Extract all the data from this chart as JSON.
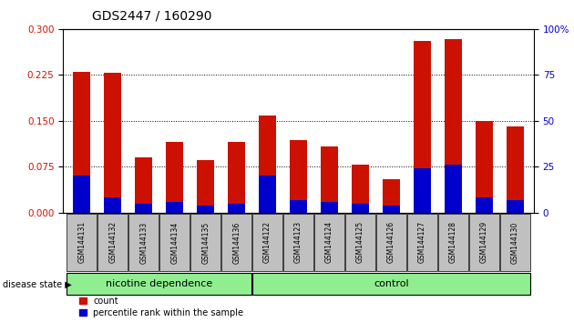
{
  "title": "GDS2447 / 160290",
  "samples": [
    "GSM144131",
    "GSM144132",
    "GSM144133",
    "GSM144134",
    "GSM144135",
    "GSM144136",
    "GSM144122",
    "GSM144123",
    "GSM144124",
    "GSM144125",
    "GSM144126",
    "GSM144127",
    "GSM144128",
    "GSM144129",
    "GSM144130"
  ],
  "count_values": [
    0.23,
    0.228,
    0.09,
    0.115,
    0.085,
    0.115,
    0.158,
    0.118,
    0.108,
    0.078,
    0.055,
    0.28,
    0.283,
    0.15,
    0.14
  ],
  "percentile_pct": [
    20,
    8,
    5,
    6,
    4,
    5,
    20,
    7,
    6,
    5,
    4,
    24,
    26,
    8,
    7
  ],
  "bar_color_red": "#CC1100",
  "bar_color_blue": "#0000CC",
  "ylim_left": [
    0,
    0.3
  ],
  "ylim_right": [
    0,
    100
  ],
  "yticks_left": [
    0,
    0.075,
    0.15,
    0.225,
    0.3
  ],
  "yticks_right": [
    0,
    25,
    50,
    75,
    100
  ],
  "grid_values": [
    0.075,
    0.15,
    0.225
  ],
  "n_nicotine": 6,
  "n_control": 9,
  "group_label_nicotine": "nicotine dependence",
  "group_label_control": "control",
  "disease_state_label": "disease state",
  "legend_count": "count",
  "legend_percentile": "percentile rank within the sample",
  "left_axis_color": "#CC1100",
  "right_axis_color": "#0000CC",
  "group_bg_color": "#90EE90",
  "tick_bg_color": "#C0C0C0",
  "bar_width": 0.55,
  "fig_width": 6.3,
  "fig_height": 3.54,
  "fig_dpi": 100
}
